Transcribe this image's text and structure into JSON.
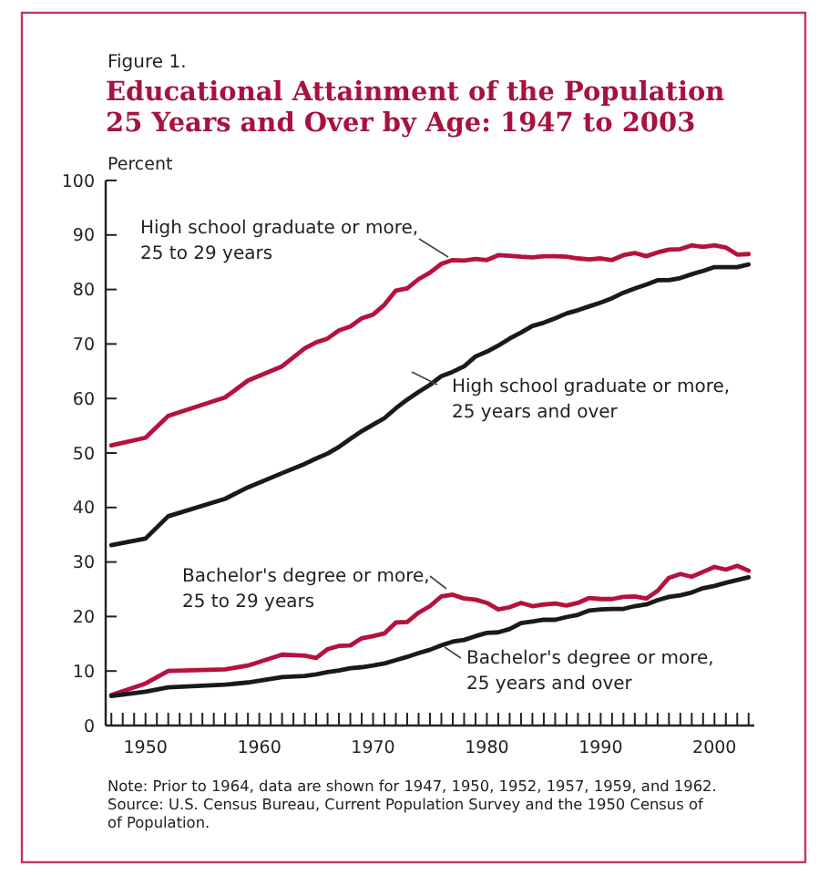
{
  "chart_data": {
    "type": "line",
    "subtitle": "Figure 1.",
    "title": "Educational Attainment of the Population\n25 Years and Over by Age:  1947 to 2003",
    "ylabel": "Percent",
    "x": [
      1947,
      1950,
      1952,
      1957,
      1959,
      1962,
      1964,
      1965,
      1966,
      1967,
      1968,
      1969,
      1970,
      1971,
      1972,
      1973,
      1974,
      1975,
      1976,
      1977,
      1978,
      1979,
      1980,
      1981,
      1982,
      1983,
      1984,
      1985,
      1986,
      1987,
      1988,
      1989,
      1990,
      1991,
      1992,
      1993,
      1994,
      1995,
      1996,
      1997,
      1998,
      1999,
      2000,
      2001,
      2002,
      2003
    ],
    "series": [
      {
        "name": "High school graduate or more, 25 to 29 years",
        "color": "#b5123e",
        "values": [
          51.4,
          52.8,
          56.8,
          60.2,
          63.3,
          65.9,
          69.2,
          70.3,
          71.0,
          72.5,
          73.2,
          74.7,
          75.4,
          77.2,
          79.8,
          80.2,
          81.9,
          83.1,
          84.7,
          85.4,
          85.3,
          85.6,
          85.4,
          86.3,
          86.2,
          86.0,
          85.9,
          86.1,
          86.1,
          86.0,
          85.7,
          85.5,
          85.7,
          85.4,
          86.3,
          86.7,
          86.1,
          86.8,
          87.3,
          87.4,
          88.1,
          87.8,
          88.1,
          87.7,
          86.4,
          86.5
        ]
      },
      {
        "name": "High school graduate or more, 25 years and over",
        "color": "#1a1a1a",
        "values": [
          33.1,
          34.3,
          38.4,
          41.6,
          43.7,
          46.3,
          48.0,
          49.0,
          49.9,
          51.1,
          52.6,
          54.0,
          55.2,
          56.4,
          58.2,
          59.8,
          61.2,
          62.5,
          64.1,
          64.9,
          65.9,
          67.7,
          68.6,
          69.7,
          71.0,
          72.1,
          73.3,
          73.9,
          74.7,
          75.6,
          76.2,
          76.9,
          77.6,
          78.4,
          79.4,
          80.2,
          80.9,
          81.7,
          81.7,
          82.1,
          82.8,
          83.4,
          84.1,
          84.1,
          84.1,
          84.6
        ]
      },
      {
        "name": "Bachelor's degree or more, 25 to 29 years",
        "color": "#b5123e",
        "values": [
          5.6,
          7.7,
          10.0,
          10.3,
          11.0,
          13.0,
          12.8,
          12.4,
          14.0,
          14.6,
          14.7,
          16.0,
          16.4,
          16.9,
          18.9,
          19.0,
          20.7,
          21.9,
          23.7,
          24.0,
          23.3,
          23.1,
          22.5,
          21.3,
          21.7,
          22.5,
          21.9,
          22.2,
          22.4,
          22.0,
          22.5,
          23.4,
          23.2,
          23.2,
          23.6,
          23.7,
          23.3,
          24.7,
          27.1,
          27.8,
          27.3,
          28.2,
          29.1,
          28.6,
          29.3,
          28.4
        ]
      },
      {
        "name": "Bachelor's degree or more, 25 years and over",
        "color": "#1a1a1a",
        "values": [
          5.4,
          6.2,
          7.0,
          7.5,
          7.9,
          8.9,
          9.1,
          9.4,
          9.8,
          10.1,
          10.5,
          10.7,
          11.0,
          11.4,
          12.0,
          12.6,
          13.3,
          13.9,
          14.7,
          15.4,
          15.7,
          16.4,
          17.0,
          17.1,
          17.7,
          18.8,
          19.1,
          19.4,
          19.4,
          19.9,
          20.3,
          21.1,
          21.3,
          21.4,
          21.4,
          21.9,
          22.2,
          23.0,
          23.6,
          23.9,
          24.4,
          25.2,
          25.6,
          26.2,
          26.7,
          27.2
        ]
      }
    ],
    "xlim": [
      1946.5,
      2003.5
    ],
    "xticks": [
      {
        "value": 1947,
        "label": null
      },
      {
        "value": 1948,
        "label": null
      },
      {
        "value": 1949,
        "label": null
      },
      1950,
      {
        "value": 1951,
        "label": null
      },
      {
        "value": 1952,
        "label": null
      },
      {
        "value": 1953,
        "label": null
      },
      {
        "value": 1954,
        "label": null
      },
      {
        "value": 1955,
        "label": null
      },
      {
        "value": 1956,
        "label": null
      },
      {
        "value": 1957,
        "label": null
      },
      {
        "value": 1958,
        "label": null
      },
      {
        "value": 1959,
        "label": null
      },
      1960,
      {
        "value": 1961,
        "label": null
      },
      {
        "value": 1962,
        "label": null
      },
      {
        "value": 1963,
        "label": null
      },
      {
        "value": 1964,
        "label": null
      },
      {
        "value": 1965,
        "label": null
      },
      {
        "value": 1966,
        "label": null
      },
      {
        "value": 1967,
        "label": null
      },
      {
        "value": 1968,
        "label": null
      },
      {
        "value": 1969,
        "label": null
      },
      1970,
      {
        "value": 1971,
        "label": null
      },
      {
        "value": 1972,
        "label": null
      },
      {
        "value": 1973,
        "label": null
      },
      {
        "value": 1974,
        "label": null
      },
      {
        "value": 1975,
        "label": null
      },
      {
        "value": 1976,
        "label": null
      },
      {
        "value": 1977,
        "label": null
      },
      {
        "value": 1978,
        "label": null
      },
      {
        "value": 1979,
        "label": null
      },
      1980,
      {
        "value": 1981,
        "label": null
      },
      {
        "value": 1982,
        "label": null
      },
      {
        "value": 1983,
        "label": null
      },
      {
        "value": 1984,
        "label": null
      },
      {
        "value": 1985,
        "label": null
      },
      {
        "value": 1986,
        "label": null
      },
      {
        "value": 1987,
        "label": null
      },
      {
        "value": 1988,
        "label": null
      },
      {
        "value": 1989,
        "label": null
      },
      1990,
      {
        "value": 1991,
        "label": null
      },
      {
        "value": 1992,
        "label": null
      },
      {
        "value": 1993,
        "label": null
      },
      {
        "value": 1994,
        "label": null
      },
      {
        "value": 1995,
        "label": null
      },
      {
        "value": 1996,
        "label": null
      },
      {
        "value": 1997,
        "label": null
      },
      {
        "value": 1998,
        "label": null
      },
      {
        "value": 1999,
        "label": null
      },
      2000,
      {
        "value": 2001,
        "label": null
      },
      {
        "value": 2002,
        "label": null
      },
      {
        "value": 2003,
        "label": null
      }
    ],
    "ylim": [
      0,
      100
    ],
    "yticks": [
      0,
      10,
      20,
      30,
      40,
      50,
      60,
      70,
      80,
      90,
      100
    ],
    "grid": false,
    "line_style": "solid",
    "annotations": [
      "Note:  Prior to 1964, data are shown for 1947, 1950, 1952, 1957, 1959, and 1962.",
      "Source:  U.S. Census Bureau, Current Population Survey and the 1950 Census of\nof Population."
    ]
  }
}
